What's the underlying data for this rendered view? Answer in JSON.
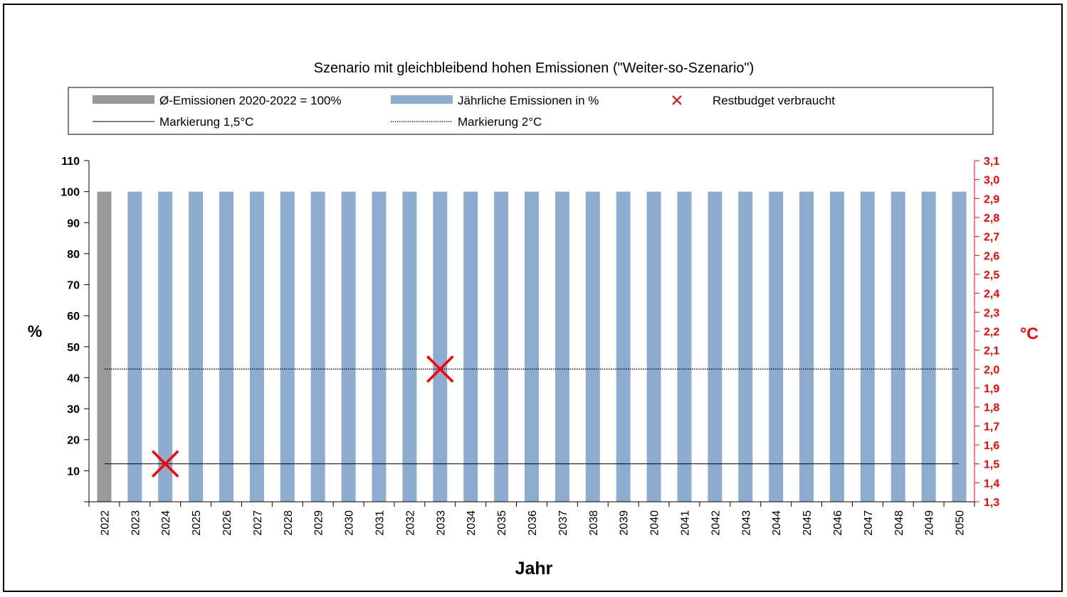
{
  "chart_data": {
    "type": "bar",
    "title": "Szenario mit gleichbleibend hohen Emissionen (\"Weiter-so-Szenario\")",
    "xlabel": "Jahr",
    "ylabel": "%",
    "y2label": "°C",
    "ylim": [
      0,
      110
    ],
    "y2lim": [
      1.3,
      3.1
    ],
    "yticks": [
      "10",
      "20",
      "30",
      "40",
      "50",
      "60",
      "70",
      "80",
      "90",
      "100",
      "110"
    ],
    "y2ticks": [
      "1,3",
      "1,4",
      "1,5",
      "1,6",
      "1,7",
      "1,8",
      "1,9",
      "2,0",
      "2,1",
      "2,2",
      "2,3",
      "2,4",
      "2,5",
      "2,6",
      "2,7",
      "2,8",
      "2,9",
      "3,0",
      "3,1"
    ],
    "categories": [
      "2022",
      "2023",
      "2024",
      "2025",
      "2026",
      "2027",
      "2028",
      "2029",
      "2030",
      "2031",
      "2032",
      "2033",
      "2034",
      "2035",
      "2036",
      "2037",
      "2038",
      "2039",
      "2040",
      "2041",
      "2042",
      "2043",
      "2044",
      "2045",
      "2046",
      "2047",
      "2048",
      "2049",
      "2050"
    ],
    "series": [
      {
        "name": "Ø-Emissionen 2020-2022 = 100%",
        "kind": "bar",
        "color": "#999999",
        "values": [
          100,
          null,
          null,
          null,
          null,
          null,
          null,
          null,
          null,
          null,
          null,
          null,
          null,
          null,
          null,
          null,
          null,
          null,
          null,
          null,
          null,
          null,
          null,
          null,
          null,
          null,
          null,
          null,
          null
        ]
      },
      {
        "name": "Jährliche Emissionen in %",
        "kind": "bar",
        "color": "#8eaccf",
        "values": [
          null,
          100,
          100,
          100,
          100,
          100,
          100,
          100,
          100,
          100,
          100,
          100,
          100,
          100,
          100,
          100,
          100,
          100,
          100,
          100,
          100,
          100,
          100,
          100,
          100,
          100,
          100,
          100,
          100
        ]
      },
      {
        "name": "Restbudget verbraucht",
        "kind": "marker",
        "color": "#ff0000",
        "axis": "y2",
        "points": [
          {
            "x": "2024",
            "y": 1.5
          },
          {
            "x": "2033",
            "y": 2.0
          }
        ]
      },
      {
        "name": "Markierung 1,5°C",
        "kind": "hline",
        "axis": "y2",
        "style": "solid",
        "color": "#000000",
        "value": 1.5
      },
      {
        "name": "Markierung 2°C",
        "kind": "hline",
        "axis": "y2",
        "style": "dotted",
        "color": "#000000",
        "value": 2.0
      }
    ],
    "y2_color": "#ff0000",
    "legend": "top",
    "grid": false
  }
}
